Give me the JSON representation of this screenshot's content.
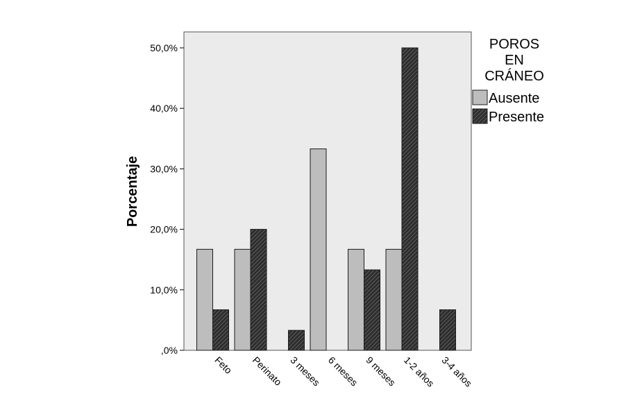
{
  "chart_data": {
    "type": "bar",
    "categories": [
      "Feto",
      "Perinato",
      "3 meses",
      "6 meses",
      "9 meses",
      "1-2 años",
      "3-4 años"
    ],
    "series": [
      {
        "name": "Ausente",
        "values": [
          16.7,
          16.7,
          null,
          33.3,
          16.7,
          16.7,
          null
        ],
        "color": "#bdbdbd",
        "pattern": "solid"
      },
      {
        "name": "Presente",
        "values": [
          6.7,
          20.0,
          3.3,
          null,
          13.3,
          50.0,
          6.7
        ],
        "color": "#404040",
        "pattern": "diagonal-hatch"
      }
    ],
    "title": "",
    "xlabel": "",
    "ylabel": "Porcentaje",
    "ylim": [
      0,
      50
    ],
    "yticks": [
      0,
      10,
      20,
      30,
      40,
      50
    ],
    "ytick_labels": [
      ",0%",
      "10,0%",
      "20,0%",
      "30,0%",
      "40,0%",
      "50,0%"
    ],
    "legend": {
      "title_lines": [
        "POROS",
        "EN",
        "CRÁNEO"
      ],
      "placement": "right-outside"
    },
    "plot_background": "#ebebeb",
    "grid": false
  }
}
